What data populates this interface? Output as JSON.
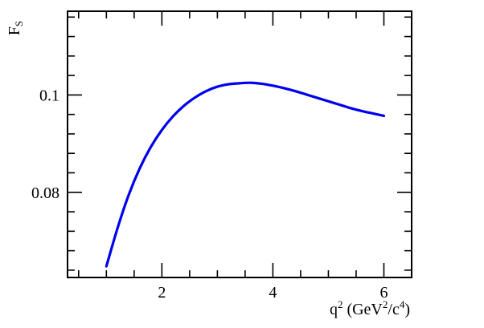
{
  "chart_data": {
    "type": "line",
    "xlabel_parts": {
      "q": "q",
      "q_sup": "2",
      "unit_open": " (GeV",
      "gev_sup": "2",
      "unit_mid": "/c",
      "c_sup": "4",
      "unit_close": ")"
    },
    "ylabel_parts": {
      "main": "F",
      "sub": "S"
    },
    "xlim": [
      0.3,
      6.5
    ],
    "ylim": [
      0.0625,
      0.1172
    ],
    "x_ticks": [
      {
        "value": 2,
        "label": "2"
      },
      {
        "value": 4,
        "label": "4"
      },
      {
        "value": 6,
        "label": "6"
      }
    ],
    "y_ticks": [
      {
        "value": 0.08,
        "label": "0.08"
      },
      {
        "value": 0.1,
        "label": "0.1"
      }
    ],
    "grid": false,
    "series": [
      {
        "color": "#0000ee",
        "x": [
          1.0,
          1.2,
          1.4,
          1.6,
          1.8,
          2.0,
          2.2,
          2.4,
          2.6,
          2.8,
          3.0,
          3.2,
          3.4,
          3.6,
          3.8,
          4.0,
          4.2,
          4.4,
          4.6,
          4.8,
          5.0,
          5.2,
          5.4,
          5.6,
          5.8,
          6.0
        ],
        "y": [
          0.0648,
          0.0726,
          0.0794,
          0.0849,
          0.0893,
          0.0928,
          0.0956,
          0.0978,
          0.0995,
          0.1008,
          0.1017,
          0.1022,
          0.1024,
          0.1025,
          0.1023,
          0.1019,
          0.1014,
          0.1008,
          0.1001,
          0.0994,
          0.0987,
          0.098,
          0.0973,
          0.0967,
          0.0962,
          0.0957
        ]
      }
    ]
  }
}
